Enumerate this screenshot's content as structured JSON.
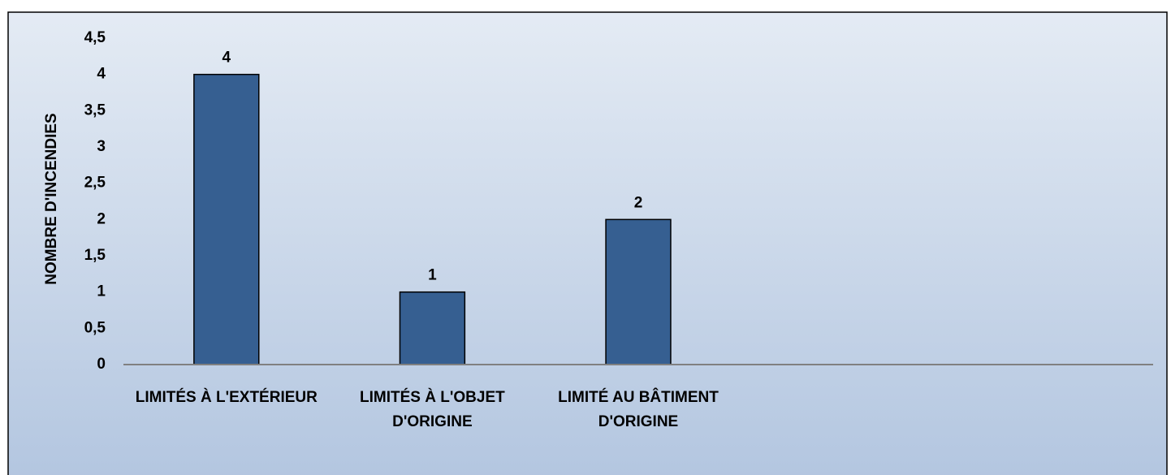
{
  "chart_data": {
    "type": "bar",
    "y_label": "NOMBRE D'INCENDIES",
    "categories": [
      "LIMITÉS À L'EXTÉRIEUR",
      "LIMITÉS À L'OBJET D'ORIGINE",
      "LIMITÉ AU BÂTIMENT D'ORIGINE",
      null,
      null
    ],
    "values": [
      4,
      1,
      2,
      null,
      null
    ],
    "color": "#365f91",
    "ylim": [
      0,
      4.5
    ],
    "yticks": [
      0,
      {
        "value": 0.5,
        "label": "0,5"
      },
      1,
      {
        "value": 1.5,
        "label": "1,5"
      },
      2,
      {
        "value": 2.5,
        "label": "2,5"
      },
      3,
      {
        "value": 3.5,
        "label": "3,5"
      },
      4,
      {
        "value": 4.5,
        "label": "4,5"
      }
    ],
    "grid": false
  }
}
